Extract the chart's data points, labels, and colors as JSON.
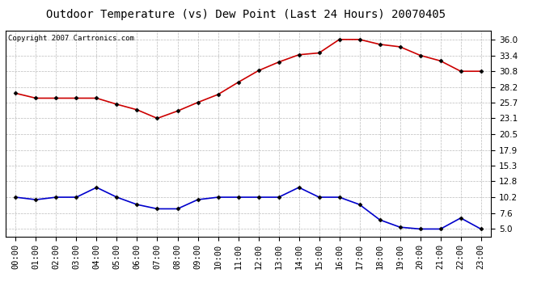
{
  "title": "Outdoor Temperature (vs) Dew Point (Last 24 Hours) 20070405",
  "copyright_text": "Copyright 2007 Cartronics.com",
  "hours": [
    "00:00",
    "01:00",
    "02:00",
    "03:00",
    "04:00",
    "05:00",
    "06:00",
    "07:00",
    "08:00",
    "09:00",
    "10:00",
    "11:00",
    "12:00",
    "13:00",
    "14:00",
    "15:00",
    "16:00",
    "17:00",
    "18:00",
    "19:00",
    "20:00",
    "21:00",
    "22:00",
    "23:00"
  ],
  "temp_red": [
    27.2,
    26.4,
    26.4,
    26.4,
    26.4,
    25.4,
    24.5,
    23.1,
    24.3,
    25.7,
    27.0,
    29.0,
    30.9,
    32.3,
    33.5,
    33.8,
    36.0,
    36.0,
    35.2,
    34.8,
    33.4,
    32.5,
    30.8,
    30.8
  ],
  "dew_blue": [
    10.2,
    9.8,
    10.2,
    10.2,
    11.8,
    10.2,
    9.0,
    8.3,
    8.3,
    9.8,
    10.2,
    10.2,
    10.2,
    10.2,
    11.8,
    10.2,
    10.2,
    9.0,
    6.5,
    5.3,
    5.0,
    5.0,
    6.8,
    5.0
  ],
  "temp_color": "#cc0000",
  "dew_color": "#0000cc",
  "marker": "D",
  "marker_size": 2.5,
  "line_width": 1.2,
  "yticks": [
    5.0,
    7.6,
    10.2,
    12.8,
    15.3,
    17.9,
    20.5,
    23.1,
    25.7,
    28.2,
    30.8,
    33.4,
    36.0
  ],
  "ylim": [
    3.8,
    37.5
  ],
  "bg_color": "#ffffff",
  "plot_bg_color": "#ffffff",
  "grid_color": "#bbbbbb",
  "title_fontsize": 10,
  "copyright_fontsize": 6.5,
  "tick_fontsize": 7.5
}
